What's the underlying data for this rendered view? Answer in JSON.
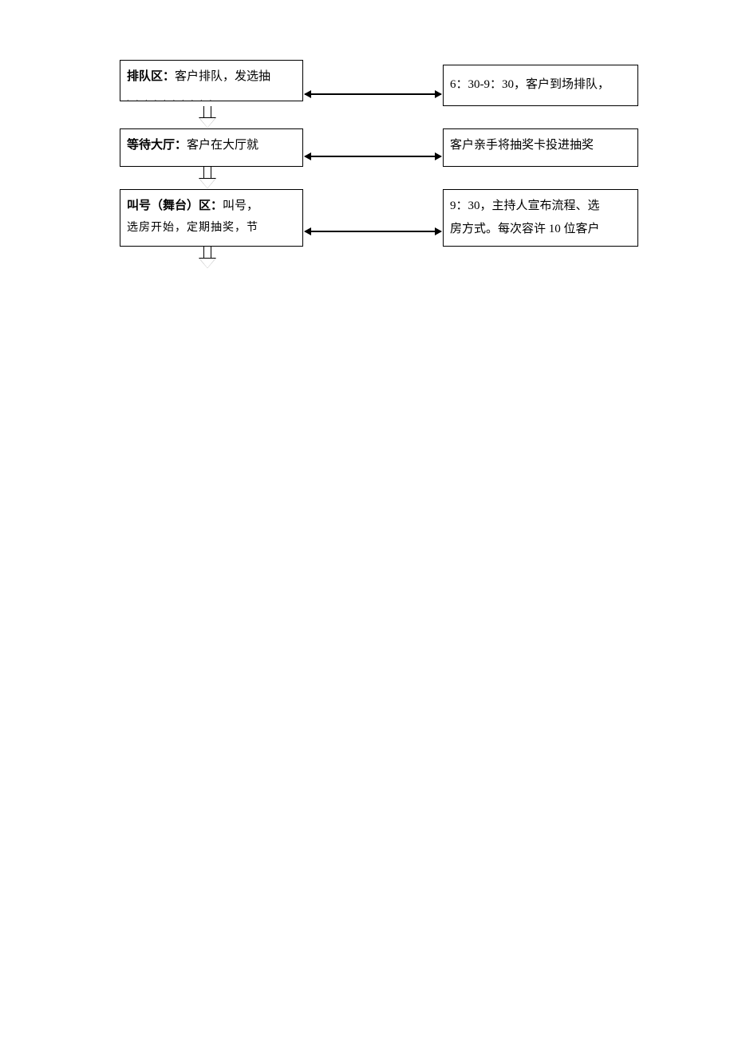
{
  "flowchart": {
    "type": "flowchart",
    "background_color": "#ffffff",
    "border_color": "#000000",
    "text_color": "#000000",
    "truncated_color": "#888888",
    "font_family": "SimSun",
    "title_fontsize": 15,
    "subtext_fontsize": 14,
    "box_border_width": 1.5,
    "left_box_width": 230,
    "right_box_width": 245,
    "nodes": [
      {
        "id": "queue_area",
        "side": "left",
        "row": 1,
        "title_bold": "排队区：",
        "title_rest": "客户排队，发选抽",
        "truncated": ". .  . .  . . . .   . ."
      },
      {
        "id": "queue_time",
        "side": "right",
        "row": 1,
        "text": "6：30-9：30，客户到场排队，"
      },
      {
        "id": "wait_hall",
        "side": "left",
        "row": 2,
        "title_bold": "等待大厅：",
        "title_rest": "客户在大厅就",
        "truncated": ". . . .  . . . . ."
      },
      {
        "id": "lottery_card",
        "side": "right",
        "row": 2,
        "text": "客户亲手将抽奖卡投进抽奖",
        "truncated": ". .  . . . . . .  . . . . ."
      },
      {
        "id": "stage_area",
        "side": "left",
        "row": 3,
        "title_bold": "叫号（舞台）区：",
        "title_rest": "叫号，",
        "line2": "选房开始，定期抽奖，节"
      },
      {
        "id": "host_announce",
        "side": "right",
        "row": 3,
        "line1": "9：30，主持人宣布流程、选",
        "line2": "房方式。每次容许 10 位客户"
      }
    ],
    "edges": [
      {
        "from": "queue_area",
        "to": "queue_time",
        "type": "bidirectional"
      },
      {
        "from": "queue_area",
        "to": "wait_hall",
        "type": "block-arrow-down"
      },
      {
        "from": "wait_hall",
        "to": "lottery_card",
        "type": "bidirectional"
      },
      {
        "from": "wait_hall",
        "to": "stage_area",
        "type": "block-arrow-down"
      },
      {
        "from": "stage_area",
        "to": "host_announce",
        "type": "bidirectional"
      },
      {
        "from": "stage_area",
        "to": "below",
        "type": "block-arrow-down"
      }
    ]
  }
}
